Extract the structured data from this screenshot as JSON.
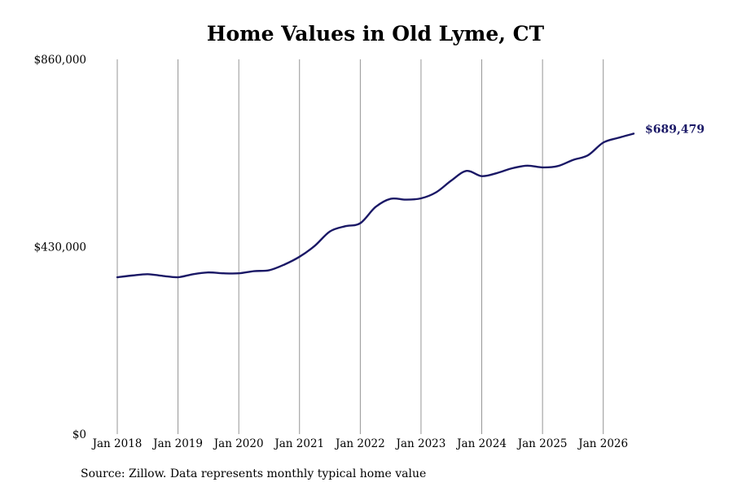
{
  "colors": {
    "line": "#1a1866",
    "grid": "#8a8a8a",
    "text": "#000000",
    "background": "#ffffff"
  },
  "source_text": "Source: Zillow. Data represents monthly typical home value",
  "chart_data": {
    "type": "line",
    "title": "Home Values in Old Lyme, CT",
    "xlabel": "",
    "ylabel": "",
    "ylim": [
      0,
      860000
    ],
    "xlim": [
      "2018-01",
      "2026-07"
    ],
    "y_ticks": [
      {
        "value": 0,
        "label": "$0"
      },
      {
        "value": 430000,
        "label": "$430,000"
      },
      {
        "value": 860000,
        "label": "$860,000"
      }
    ],
    "x_ticks": [
      {
        "date": "2018-01",
        "label": "Jan 2018"
      },
      {
        "date": "2019-01",
        "label": "Jan 2019"
      },
      {
        "date": "2020-01",
        "label": "Jan 2020"
      },
      {
        "date": "2021-01",
        "label": "Jan 2021"
      },
      {
        "date": "2022-01",
        "label": "Jan 2022"
      },
      {
        "date": "2023-01",
        "label": "Jan 2023"
      },
      {
        "date": "2024-01",
        "label": "Jan 2024"
      },
      {
        "date": "2025-01",
        "label": "Jan 2025"
      },
      {
        "date": "2026-01",
        "label": "Jan 2026"
      }
    ],
    "vertical_grid": true,
    "horizontal_grid": false,
    "end_label": "$689,479",
    "series": [
      {
        "x": [
          "2018-01",
          "2018-04",
          "2018-07",
          "2018-10",
          "2019-01",
          "2019-04",
          "2019-07",
          "2019-10",
          "2020-01",
          "2020-04",
          "2020-07",
          "2020-10",
          "2021-01",
          "2021-04",
          "2021-07",
          "2021-10",
          "2022-01",
          "2022-04",
          "2022-07",
          "2022-10",
          "2023-01",
          "2023-04",
          "2023-07",
          "2023-10",
          "2024-01",
          "2024-04",
          "2024-07",
          "2024-10",
          "2025-01",
          "2025-04",
          "2025-07",
          "2025-10",
          "2026-01",
          "2026-04",
          "2026-07"
        ],
        "values": [
          360000,
          364000,
          367000,
          363000,
          360000,
          367000,
          371000,
          369000,
          369000,
          374000,
          376000,
          389000,
          407000,
          432000,
          465000,
          477000,
          484000,
          521000,
          540000,
          538000,
          541000,
          555000,
          582000,
          604000,
          592000,
          599000,
          610000,
          616000,
          612000,
          615000,
          629000,
          640000,
          669000,
          680000,
          689479
        ]
      }
    ]
  }
}
